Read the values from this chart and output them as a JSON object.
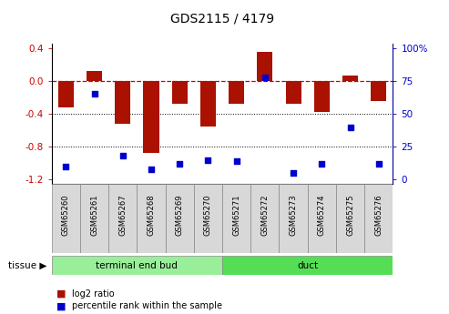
{
  "title": "GDS2115 / 4179",
  "samples": [
    "GSM65260",
    "GSM65261",
    "GSM65267",
    "GSM65268",
    "GSM65269",
    "GSM65270",
    "GSM65271",
    "GSM65272",
    "GSM65273",
    "GSM65274",
    "GSM65275",
    "GSM65276"
  ],
  "log2_ratio": [
    -0.32,
    0.12,
    -0.52,
    -0.88,
    -0.28,
    -0.55,
    -0.28,
    0.35,
    -0.28,
    -0.38,
    0.07,
    -0.24
  ],
  "percentile_rank": [
    10,
    65,
    18,
    8,
    12,
    15,
    14,
    78,
    5,
    12,
    40,
    12
  ],
  "group1_label": "terminal end bud",
  "group1_count": 6,
  "group2_label": "duct",
  "group2_count": 6,
  "tissue_label": "tissue",
  "legend_log2": "log2 ratio",
  "legend_pct": "percentile rank within the sample",
  "bar_color": "#aa1100",
  "dot_color": "#0000cc",
  "group1_color": "#99ee99",
  "group2_color": "#55dd55",
  "sample_box_color": "#d8d8d8",
  "tick_label_color_left": "#cc0000",
  "tick_label_color_right": "#0000cc",
  "ylim": [
    -1.25,
    0.45
  ],
  "yticks_left": [
    0.4,
    0.0,
    -0.4,
    -0.8,
    -1.2
  ],
  "yticks_right": [
    100,
    75,
    50,
    25,
    0
  ],
  "hline_y": 0.0,
  "dotline_y": [
    -0.4,
    -0.8
  ],
  "bar_width": 0.55
}
